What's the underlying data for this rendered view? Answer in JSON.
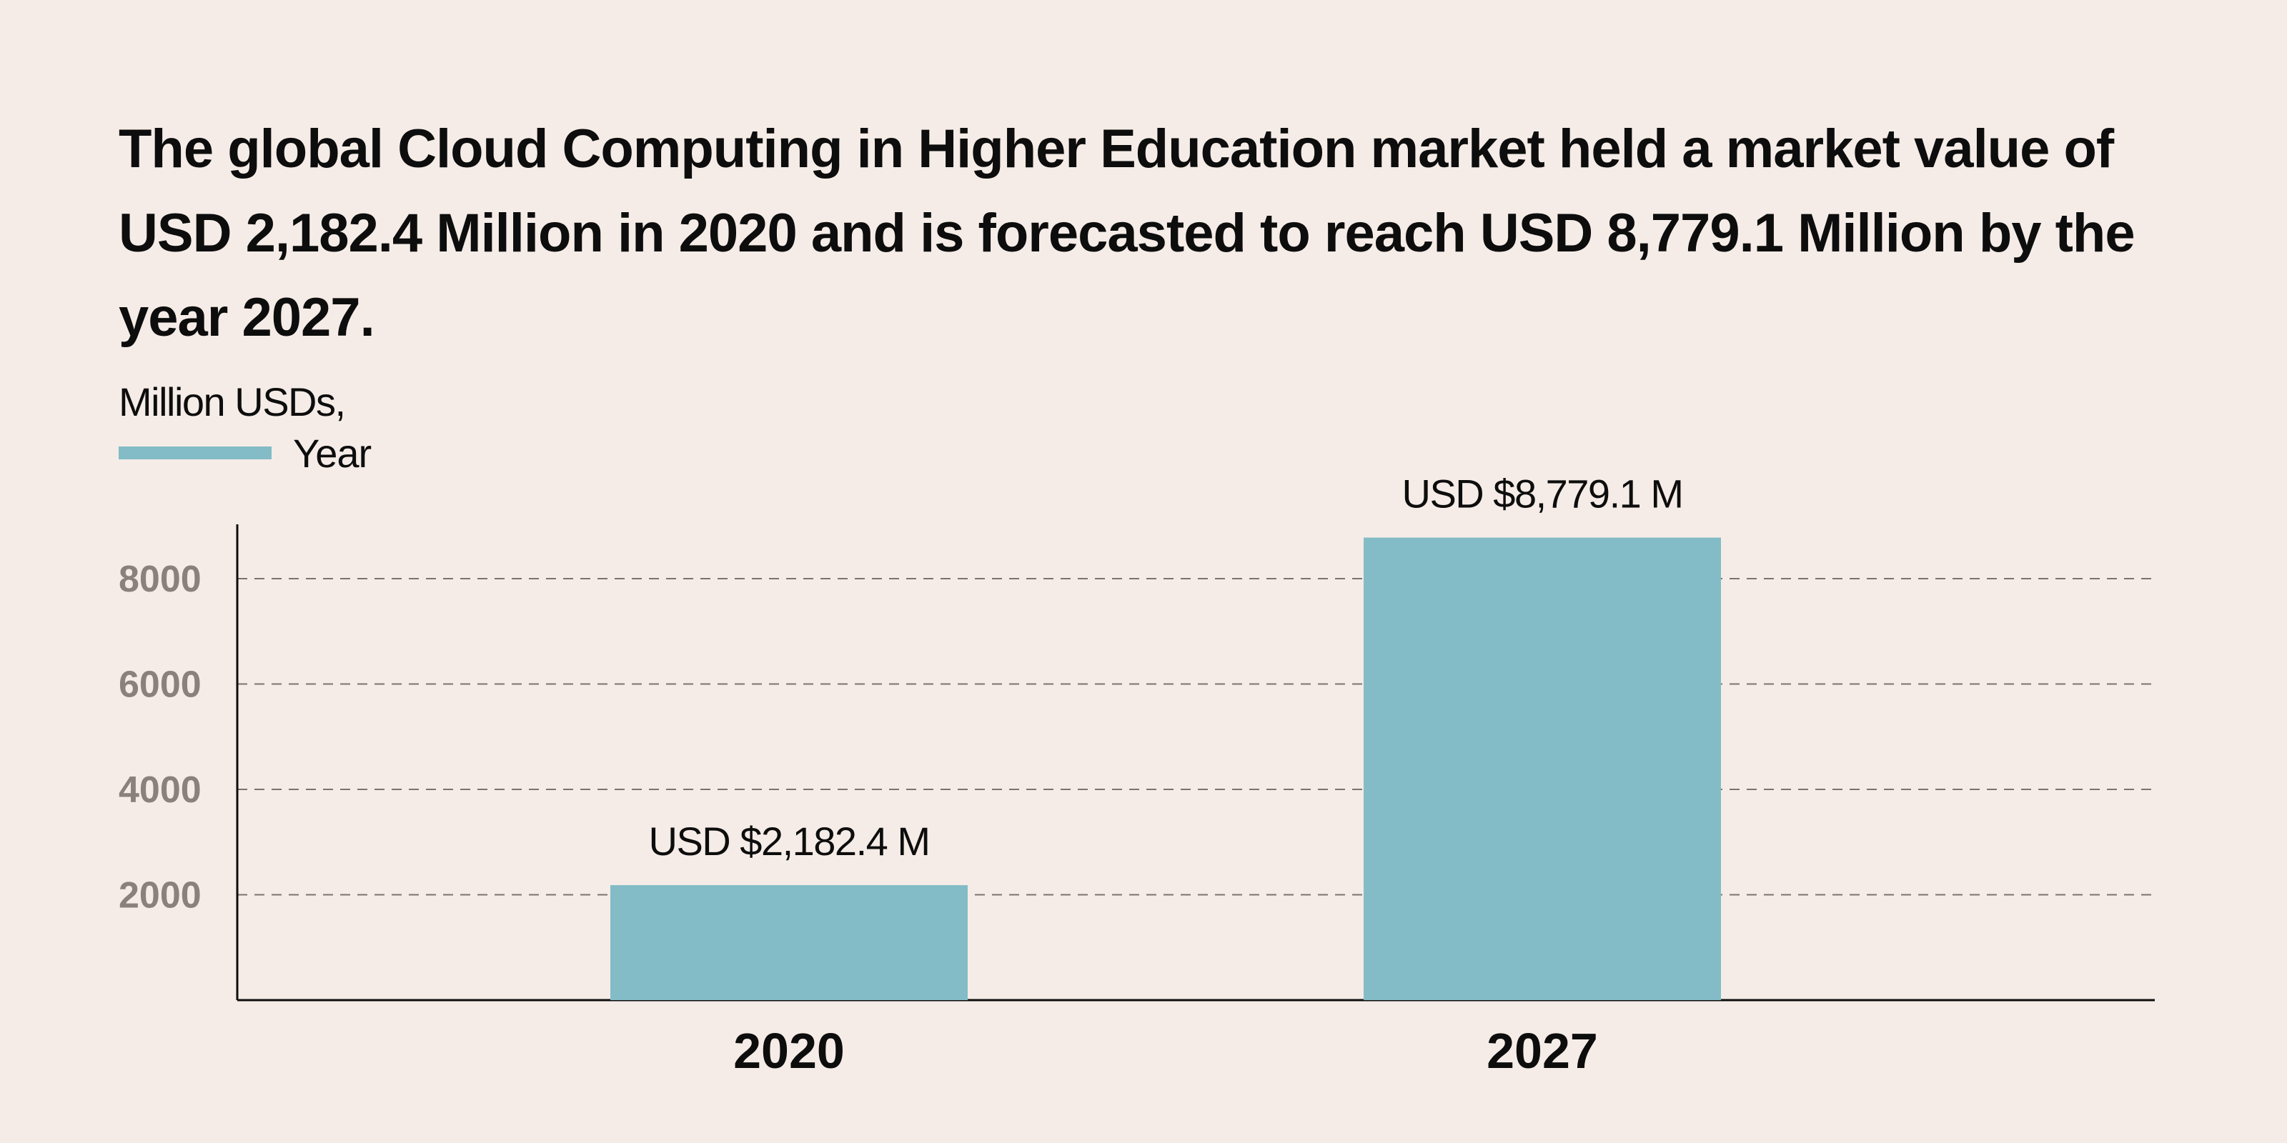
{
  "headline": "The global Cloud Computing in Higher Education market held a market value of USD 2,182.4 Million in 2020 and is forecasted to reach USD 8,779.1 Million by the year 2027.",
  "legend": {
    "title": "Million USDs,",
    "label": "Year",
    "color": "#83bcc6"
  },
  "colors": {
    "background": "#f5ece7",
    "bar": "#83bcc6",
    "grid": "#7a7370",
    "axis": "#0d0d0d"
  },
  "chart_data": {
    "type": "bar",
    "categories": [
      "2020",
      "2027"
    ],
    "values": [
      2182.4,
      8779.1
    ],
    "data_labels": [
      "USD $2,182.4 M",
      "USD $8,779.1 M"
    ],
    "ylim": [
      0,
      9000
    ],
    "yticks": [
      2000,
      4000,
      6000,
      8000
    ],
    "grid": "dashed horizontal",
    "legend_placement": "top-left"
  }
}
